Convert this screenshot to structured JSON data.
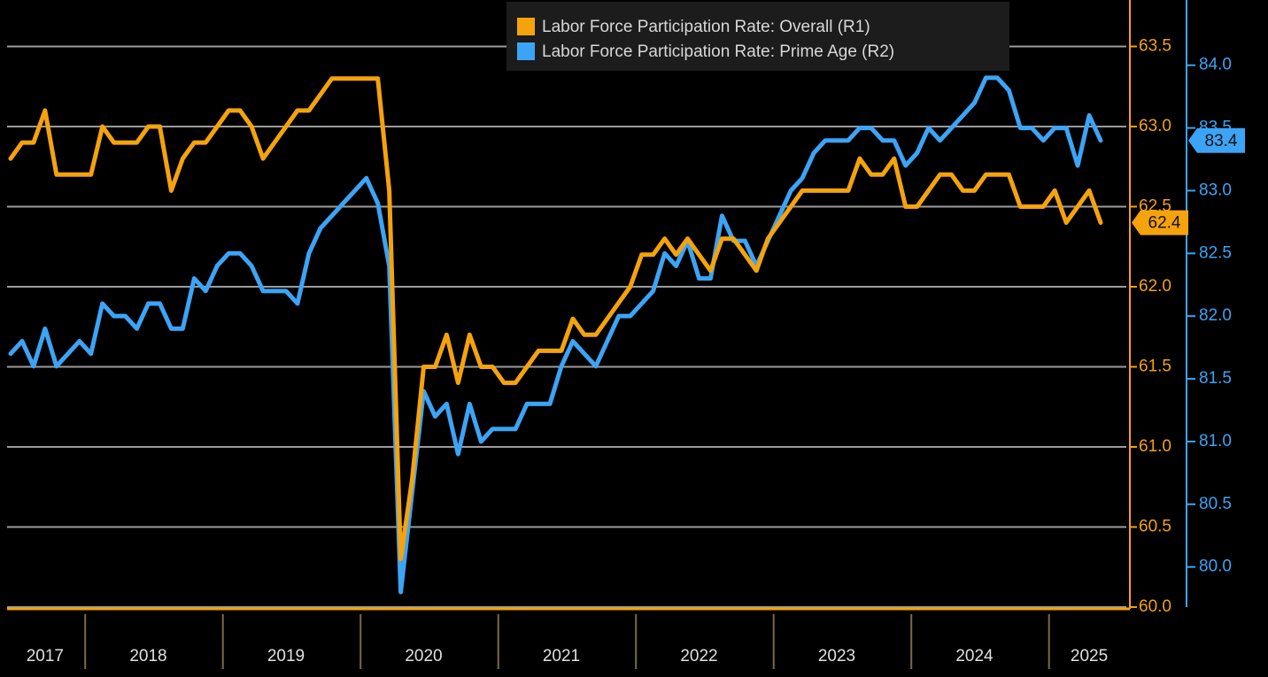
{
  "chart_data": {
    "type": "line",
    "categories": [
      null,
      null,
      null,
      "2017",
      null,
      null,
      null,
      null,
      null,
      null,
      null,
      null,
      "2018",
      null,
      null,
      null,
      null,
      null,
      null,
      null,
      null,
      null,
      null,
      null,
      "2019",
      null,
      null,
      null,
      null,
      null,
      null,
      null,
      null,
      null,
      null,
      null,
      "2020",
      null,
      null,
      null,
      null,
      null,
      null,
      null,
      null,
      null,
      null,
      null,
      "2021",
      null,
      null,
      null,
      null,
      null,
      null,
      null,
      null,
      null,
      null,
      null,
      "2022",
      null,
      null,
      null,
      null,
      null,
      null,
      null,
      null,
      null,
      null,
      null,
      "2023",
      null,
      null,
      null,
      null,
      null,
      null,
      null,
      null,
      null,
      null,
      null,
      "2024",
      null,
      null,
      null,
      null,
      null,
      null,
      null,
      null,
      null,
      "2025",
      null
    ],
    "series": [
      {
        "name": "Labor Force Participation Rate: Overall (R1)",
        "color": "#f5a30c",
        "axis": "y",
        "values": [
          62.8,
          62.9,
          62.9,
          63.1,
          62.7,
          62.7,
          62.7,
          62.7,
          63.0,
          62.9,
          62.9,
          62.9,
          63.0,
          63.0,
          62.6,
          62.8,
          62.9,
          62.9,
          63.0,
          63.1,
          63.1,
          63.0,
          62.8,
          62.9,
          63.0,
          63.1,
          63.1,
          63.2,
          63.3,
          63.3,
          63.3,
          63.3,
          63.3,
          62.6,
          60.3,
          60.8,
          61.5,
          61.5,
          61.7,
          61.4,
          61.7,
          61.5,
          61.5,
          61.4,
          61.4,
          61.5,
          61.6,
          61.6,
          61.6,
          61.8,
          61.7,
          61.7,
          61.8,
          61.9,
          62.0,
          62.2,
          62.2,
          62.3,
          62.2,
          62.3,
          62.2,
          62.1,
          62.3,
          62.3,
          62.2,
          62.1,
          62.3,
          62.4,
          62.5,
          62.6,
          62.6,
          62.6,
          62.6,
          62.6,
          62.8,
          62.7,
          62.7,
          62.8,
          62.5,
          62.5,
          62.6,
          62.7,
          62.7,
          62.6,
          62.6,
          62.7,
          62.7,
          62.7,
          62.5,
          62.5,
          62.5,
          62.6,
          62.4,
          62.5,
          62.6,
          62.4
        ]
      },
      {
        "name": "Labor Force Participation Rate: Prime Age (R2)",
        "color": "#3ca4f6",
        "axis": "y2",
        "values": [
          81.7,
          81.8,
          81.6,
          81.9,
          81.6,
          81.7,
          81.8,
          81.7,
          82.1,
          82.0,
          82.0,
          81.9,
          82.1,
          82.1,
          81.9,
          81.9,
          82.3,
          82.2,
          82.4,
          82.5,
          82.5,
          82.4,
          82.2,
          82.2,
          82.2,
          82.1,
          82.5,
          82.7,
          82.8,
          82.9,
          83.0,
          83.1,
          82.9,
          82.4,
          79.8,
          80.6,
          81.4,
          81.2,
          81.3,
          80.9,
          81.3,
          81.0,
          81.1,
          81.1,
          81.1,
          81.3,
          81.3,
          81.3,
          81.6,
          81.8,
          81.7,
          81.6,
          81.8,
          82.0,
          82.0,
          82.1,
          82.2,
          82.5,
          82.4,
          82.6,
          82.3,
          82.3,
          82.8,
          82.6,
          82.6,
          82.4,
          82.6,
          82.8,
          83.0,
          83.1,
          83.3,
          83.4,
          83.4,
          83.4,
          83.5,
          83.5,
          83.4,
          83.4,
          83.2,
          83.3,
          83.5,
          83.4,
          83.5,
          83.6,
          83.7,
          83.9,
          83.9,
          83.8,
          83.5,
          83.5,
          83.4,
          83.5,
          83.5,
          83.2,
          83.6,
          83.4
        ]
      }
    ],
    "ylim": [
      60,
      63.79
    ],
    "yticks": [
      {
        "value": 60,
        "label": "60.0"
      },
      60.5,
      {
        "value": 61,
        "label": "61.0"
      },
      61.5,
      {
        "value": 62,
        "label": "62.0"
      },
      62.5,
      {
        "value": 63,
        "label": "63.0"
      },
      63.5
    ],
    "y2lim": [
      79.68,
      84.52
    ],
    "y2ticks": [
      {
        "value": 80,
        "label": "80.0"
      },
      80.5,
      {
        "value": 81,
        "label": "81.0"
      },
      81.5,
      {
        "value": 82,
        "label": "82.0"
      },
      82.5,
      {
        "value": 83,
        "label": "83.0"
      },
      83.5,
      {
        "value": 84,
        "label": "84.0"
      }
    ],
    "grid": true,
    "legend": "top"
  }
}
